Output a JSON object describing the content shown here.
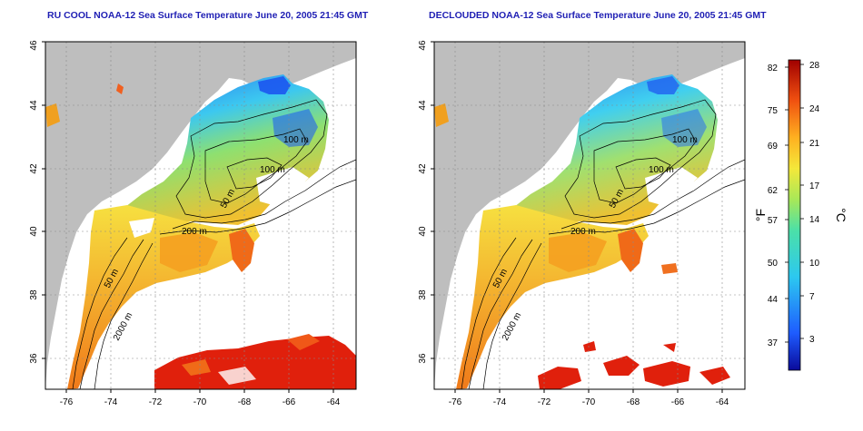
{
  "maps": [
    {
      "title": "RU COOL NOAA-12 Sea Surface Temperature June 20, 2005 21:45 GMT",
      "x_ticks": [
        "-76",
        "-74",
        "-72",
        "-70",
        "-68",
        "-66",
        "-64"
      ],
      "y_ticks": [
        "36",
        "38",
        "40",
        "42",
        "44",
        "46"
      ],
      "contour_labels": [
        "100 m",
        "100 m",
        "50 m",
        "200 m",
        "50 m",
        "2000 m"
      ]
    },
    {
      "title": "DECLOUDED NOAA-12 Sea Surface Temperature June 20, 2005 21:45 GMT",
      "x_ticks": [
        "-76",
        "-74",
        "-72",
        "-70",
        "-68",
        "-66",
        "-64"
      ],
      "y_ticks": [
        "36",
        "38",
        "40",
        "42",
        "44",
        "46"
      ],
      "contour_labels": [
        "100 m",
        "100 m",
        "50 m",
        "200 m",
        "50 m",
        "2000 m"
      ]
    }
  ],
  "colorbar": {
    "fahrenheit_label": "°F",
    "celsius_label": "°C",
    "fahrenheit_ticks": [
      "82",
      "75",
      "69",
      "62",
      "57",
      "50",
      "44",
      "37"
    ],
    "celsius_ticks": [
      "28",
      "24",
      "21",
      "17",
      "14",
      "10",
      "7",
      "3"
    ]
  },
  "colors": {
    "land": "#bebebe",
    "title": "#1f1fb4",
    "cold": "#1040ff",
    "cool": "#40d0f0",
    "mild": "#a0e060",
    "warm": "#ffc020",
    "hot": "#e01010"
  }
}
